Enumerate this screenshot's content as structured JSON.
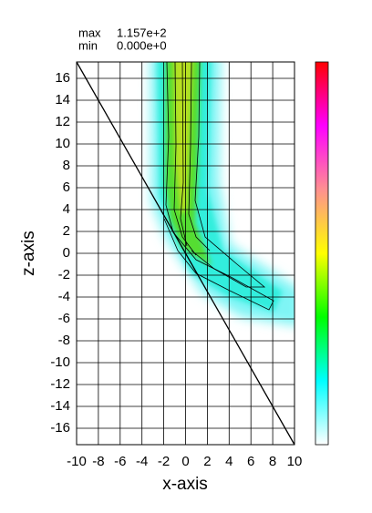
{
  "chart_data": {
    "type": "contour",
    "max_text": "max",
    "max": {
      "value": 115.7,
      "label": "1.157e+2"
    },
    "min_text": "min",
    "min": {
      "value": 0,
      "label": "0.000e+0"
    },
    "x_label": "x-axis",
    "y_label": "z-axis",
    "xlim": [
      -10,
      10
    ],
    "ylim": [
      -17.5,
      17.5
    ],
    "xticks": [
      -10,
      -8,
      -6,
      -4,
      -2,
      0,
      2,
      4,
      6,
      8,
      10
    ],
    "yticks": [
      -16,
      -14,
      -12,
      -10,
      -8,
      -6,
      -4,
      -2,
      0,
      2,
      4,
      6,
      8,
      10,
      12,
      14,
      16
    ],
    "grid": true,
    "colorscale": [
      "#ffffff",
      "#00ffff",
      "#00ff00",
      "#ffff00",
      "#ff9090",
      "#ff00ff",
      "#ff0000"
    ]
  }
}
